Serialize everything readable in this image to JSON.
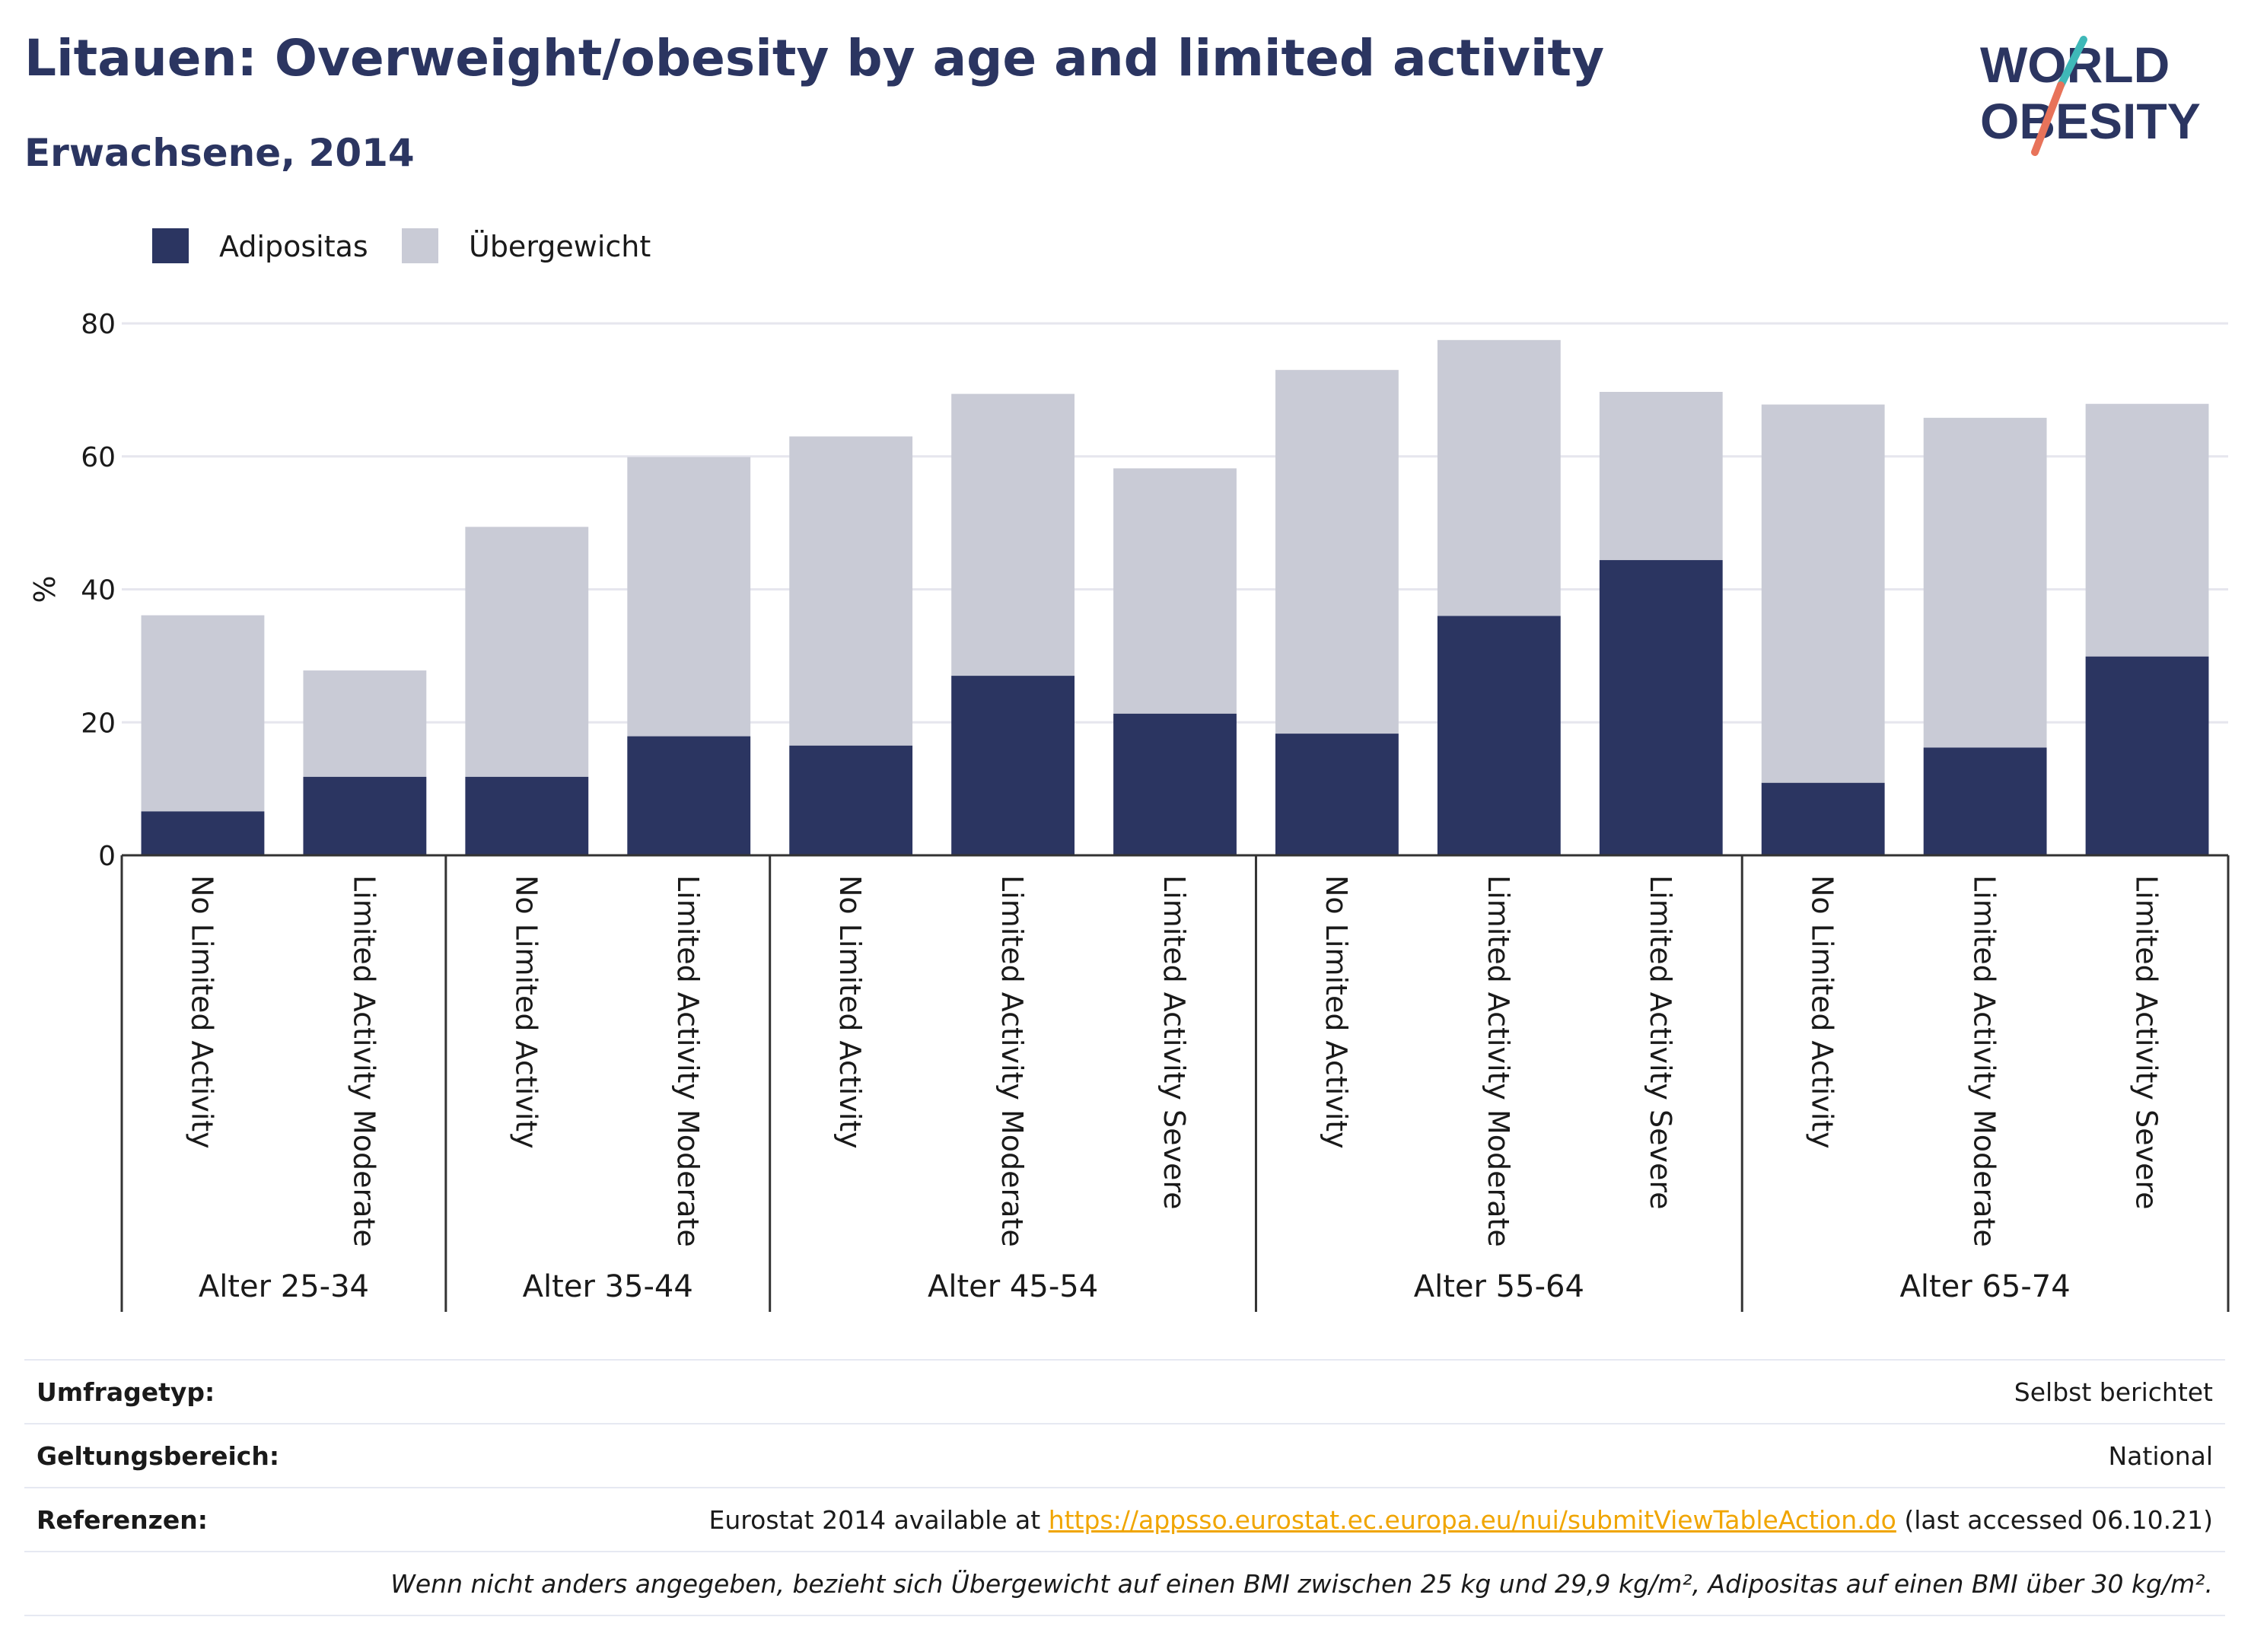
{
  "header": {
    "title": "Litauen: Overweight/obesity by age and limited activity",
    "subtitle": "Erwachsene, 2014",
    "logo_line1": "WORLD",
    "logo_line2": "OBESITY"
  },
  "colors": {
    "adipositas": "#2b3561",
    "uebergewicht": "#c9cbd6",
    "title": "#2b3561",
    "grid": "#e6e6ee",
    "link": "#f0a500",
    "logo_teal": "#3fb8b8",
    "logo_coral": "#e8735a"
  },
  "chart_data": {
    "type": "bar",
    "stacked": true,
    "ylabel": "%",
    "xlabel": "",
    "ylim": [
      0,
      80
    ],
    "yticks": [
      0,
      20,
      40,
      60,
      80
    ],
    "grid": true,
    "legend_placement": "top-left",
    "groups": [
      {
        "label": "Alter 25-34",
        "size": 2
      },
      {
        "label": "Alter 35-44",
        "size": 2
      },
      {
        "label": "Alter 45-54",
        "size": 3
      },
      {
        "label": "Alter 55-64",
        "size": 3
      },
      {
        "label": "Alter 65-74",
        "size": 3
      }
    ],
    "categories": [
      "No Limited Activity",
      "Limited Activity Moderate",
      "No Limited Activity",
      "Limited Activity Moderate",
      "No Limited Activity",
      "Limited Activity Moderate",
      "Limited Activity Severe",
      "No Limited Activity",
      "Limited Activity Moderate",
      "Limited Activity Severe",
      "No Limited Activity",
      "Limited Activity Moderate",
      "Limited Activity Severe"
    ],
    "series": [
      {
        "name": "Adipositas",
        "values": [
          6.6,
          11.8,
          11.8,
          17.9,
          16.5,
          27.0,
          21.3,
          18.3,
          36.0,
          44.4,
          10.9,
          16.2,
          29.9
        ]
      },
      {
        "name": "Übergewicht",
        "values": [
          29.5,
          16.0,
          37.6,
          42.0,
          46.5,
          42.4,
          36.9,
          54.7,
          41.5,
          25.3,
          56.9,
          49.6,
          38.0
        ]
      }
    ]
  },
  "footer": {
    "rows": [
      {
        "label": "Umfragetyp:",
        "value": "Selbst berichtet"
      },
      {
        "label": "Geltungsbereich:",
        "value": "National"
      },
      {
        "label": "Referenzen:",
        "value_pre": "Eurostat 2014 available at ",
        "link": "https://appsso.eurostat.ec.europa.eu/nui/submitViewTableAction.do",
        "value_post": " (last accessed 06.10.21)"
      }
    ],
    "note": "Wenn nicht anders angegeben, bezieht sich Übergewicht auf einen BMI zwischen 25 kg und 29,9 kg/m², Adipositas auf einen BMI über 30 kg/m²."
  }
}
